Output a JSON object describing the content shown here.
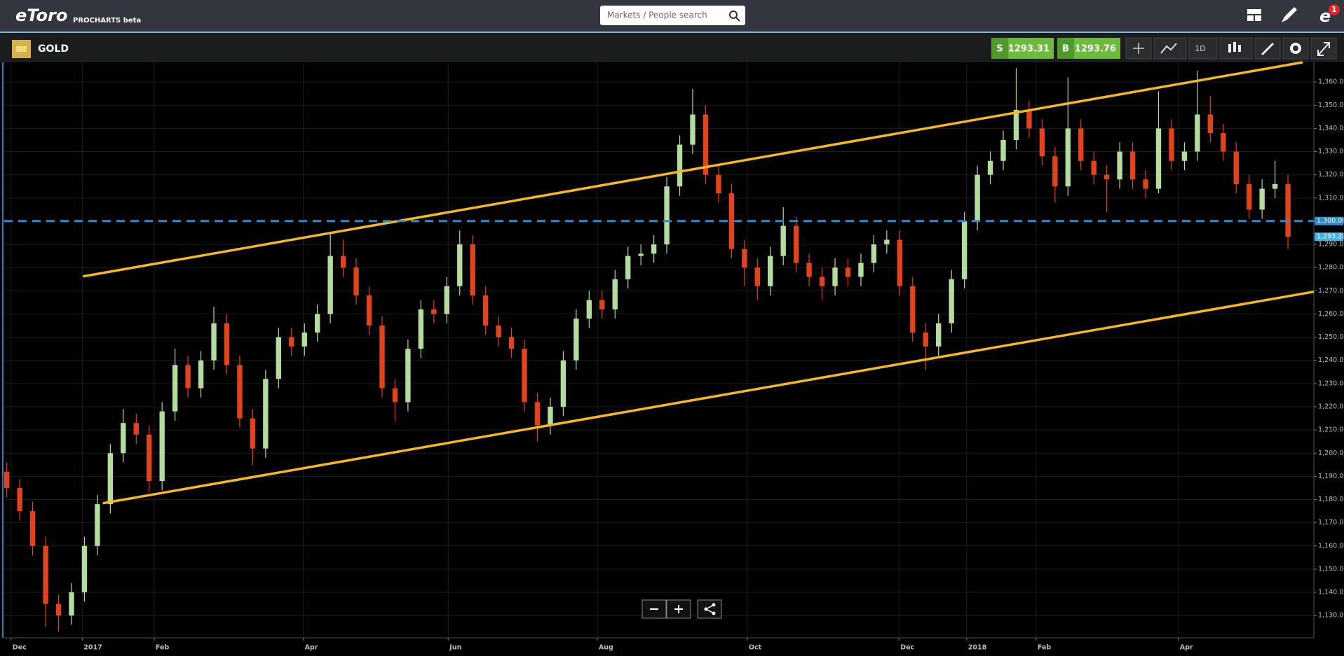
{
  "header": {
    "logo": "eToro",
    "product": "PROCHARTS beta",
    "search_placeholder": "Markets / People search",
    "notifications": "1"
  },
  "toolbar": {
    "instrument": "GOLD",
    "sell_label": "S",
    "sell_price": 1293.31,
    "buy_label": "B",
    "buy_price": 1293.76,
    "interval": "1D"
  },
  "chart_data": {
    "type": "candlestick",
    "up_color": "#b4dc9c",
    "down_color": "#e2431b",
    "grid": true,
    "x": [
      0,
      1,
      2,
      3,
      4,
      5,
      6,
      7,
      8,
      9,
      10,
      11,
      12,
      13,
      14,
      15,
      16,
      17,
      18,
      19,
      20,
      21,
      22,
      23,
      24,
      25,
      26,
      27,
      28,
      29,
      30,
      31,
      32,
      33,
      34,
      35,
      36,
      37,
      38,
      39,
      40,
      41,
      42,
      43,
      44,
      45,
      46,
      47,
      48,
      49,
      50,
      51,
      52,
      53,
      54,
      55,
      56,
      57,
      58,
      59,
      60,
      61,
      62,
      63,
      64,
      65,
      66,
      67,
      68,
      69,
      70,
      71,
      72,
      73,
      74,
      75,
      76,
      77,
      78,
      79,
      80,
      81,
      82,
      83,
      84,
      85,
      86,
      87,
      88,
      89,
      90,
      91,
      92,
      93,
      94,
      95,
      96,
      97,
      98,
      99
    ],
    "open": [
      1192,
      1185,
      1175,
      1160,
      1135,
      1130,
      1140,
      1160,
      1178,
      1200,
      1213,
      1208,
      1188,
      1218,
      1238,
      1228,
      1240,
      1256,
      1238,
      1215,
      1202,
      1232,
      1250,
      1246,
      1252,
      1260,
      1285,
      1280,
      1268,
      1255,
      1228,
      1222,
      1245,
      1262,
      1260,
      1272,
      1290,
      1268,
      1255,
      1250,
      1245,
      1222,
      1212,
      1220,
      1240,
      1258,
      1266,
      1262,
      1275,
      1285,
      1286,
      1290,
      1315,
      1333,
      1346,
      1320,
      1312,
      1288,
      1280,
      1272,
      1285,
      1298,
      1282,
      1276,
      1272,
      1280,
      1276,
      1282,
      1290,
      1292,
      1272,
      1252,
      1246,
      1256,
      1275,
      1300,
      1320,
      1326,
      1335,
      1348,
      1340,
      1328,
      1315,
      1340,
      1326,
      1320,
      1318,
      1330,
      1318,
      1314,
      1340,
      1326,
      1330,
      1346,
      1338,
      1330,
      1316,
      1305,
      1314,
      1316
    ],
    "high": [
      1196,
      1189,
      1179,
      1164,
      1139,
      1144,
      1164,
      1182,
      1204,
      1219,
      1217,
      1212,
      1222,
      1245,
      1242,
      1244,
      1263,
      1260,
      1242,
      1219,
      1236,
      1254,
      1254,
      1256,
      1264,
      1295,
      1292,
      1284,
      1272,
      1259,
      1232,
      1249,
      1266,
      1266,
      1276,
      1296,
      1294,
      1272,
      1259,
      1254,
      1249,
      1226,
      1224,
      1244,
      1262,
      1270,
      1270,
      1279,
      1289,
      1290,
      1294,
      1319,
      1337,
      1357,
      1350,
      1324,
      1316,
      1292,
      1284,
      1289,
      1306,
      1302,
      1286,
      1280,
      1284,
      1284,
      1286,
      1294,
      1296,
      1296,
      1276,
      1256,
      1260,
      1279,
      1304,
      1324,
      1330,
      1339,
      1366,
      1352,
      1344,
      1332,
      1362,
      1344,
      1330,
      1324,
      1334,
      1334,
      1322,
      1356,
      1344,
      1334,
      1365,
      1354,
      1342,
      1334,
      1320,
      1318,
      1326,
      1320
    ],
    "low": [
      1181,
      1171,
      1156,
      1125,
      1123,
      1126,
      1136,
      1156,
      1174,
      1196,
      1204,
      1183,
      1184,
      1214,
      1224,
      1224,
      1236,
      1234,
      1211,
      1195,
      1198,
      1228,
      1242,
      1242,
      1248,
      1256,
      1276,
      1264,
      1251,
      1224,
      1214,
      1218,
      1241,
      1256,
      1256,
      1268,
      1264,
      1251,
      1246,
      1241,
      1218,
      1205,
      1208,
      1216,
      1236,
      1254,
      1258,
      1258,
      1271,
      1281,
      1282,
      1286,
      1311,
      1329,
      1316,
      1308,
      1284,
      1272,
      1266,
      1268,
      1281,
      1278,
      1272,
      1266,
      1268,
      1272,
      1272,
      1278,
      1286,
      1268,
      1248,
      1236,
      1242,
      1252,
      1271,
      1296,
      1316,
      1322,
      1331,
      1336,
      1324,
      1308,
      1311,
      1322,
      1316,
      1304,
      1314,
      1314,
      1310,
      1312,
      1322,
      1322,
      1326,
      1334,
      1326,
      1312,
      1301,
      1301,
      1310,
      1288
    ],
    "close": [
      1185,
      1175,
      1160,
      1135,
      1130,
      1140,
      1160,
      1178,
      1200,
      1213,
      1208,
      1188,
      1218,
      1238,
      1228,
      1240,
      1256,
      1238,
      1215,
      1202,
      1232,
      1250,
      1246,
      1252,
      1260,
      1285,
      1280,
      1268,
      1255,
      1228,
      1222,
      1245,
      1262,
      1260,
      1272,
      1290,
      1268,
      1255,
      1250,
      1245,
      1222,
      1212,
      1220,
      1240,
      1258,
      1266,
      1262,
      1275,
      1285,
      1286,
      1290,
      1315,
      1333,
      1346,
      1320,
      1312,
      1288,
      1280,
      1272,
      1285,
      1298,
      1282,
      1276,
      1272,
      1280,
      1276,
      1282,
      1290,
      1292,
      1272,
      1252,
      1246,
      1256,
      1275,
      1300,
      1320,
      1326,
      1335,
      1348,
      1340,
      1328,
      1315,
      1340,
      1326,
      1320,
      1318,
      1330,
      1318,
      1314,
      1340,
      1326,
      1330,
      1346,
      1338,
      1330,
      1316,
      1305,
      1314,
      1316,
      1293.29
    ],
    "xlim": [
      -0.2,
      101
    ],
    "xticks": [
      {
        "value": 0.33,
        "label": "Dec"
      },
      {
        "value": 5.83,
        "label": "2017"
      },
      {
        "value": 11.39,
        "label": "Feb"
      },
      {
        "value": 22.91,
        "label": "Apr"
      },
      {
        "value": 34.11,
        "label": "Jun"
      },
      {
        "value": 45.63,
        "label": "Aug"
      },
      {
        "value": 57.22,
        "label": "Oct"
      },
      {
        "value": 68.94,
        "label": "Dec"
      },
      {
        "value": 74.17,
        "label": "2018"
      },
      {
        "value": 79.54,
        "label": "Feb"
      },
      {
        "value": 90.53,
        "label": "Apr"
      }
    ],
    "ylim": [
      1120.4,
      1368.5
    ],
    "yticks": [
      {
        "value": 1130,
        "label": "1,130.00"
      },
      {
        "value": 1140,
        "label": "1,140.00"
      },
      {
        "value": 1150,
        "label": "1,150.00"
      },
      {
        "value": 1160,
        "label": "1,160.00"
      },
      {
        "value": 1170,
        "label": "1,170.00"
      },
      {
        "value": 1180,
        "label": "1,180.00"
      },
      {
        "value": 1190,
        "label": "1,190.00"
      },
      {
        "value": 1200,
        "label": "1,200.00"
      },
      {
        "value": 1210,
        "label": "1,210.00"
      },
      {
        "value": 1220,
        "label": "1,220.00"
      },
      {
        "value": 1230,
        "label": "1,230.00"
      },
      {
        "value": 1240,
        "label": "1,240.00"
      },
      {
        "value": 1250,
        "label": "1,250.00"
      },
      {
        "value": 1260,
        "label": "1,260.00"
      },
      {
        "value": 1270,
        "label": "1,270.00"
      },
      {
        "value": 1280,
        "label": "1,280.00"
      },
      {
        "value": 1290,
        "label": "1,290.00"
      },
      {
        "value": 1300,
        "label": "1,300.00"
      },
      {
        "value": 1310,
        "label": "1,310.00"
      },
      {
        "value": 1320,
        "label": "1,320.00"
      },
      {
        "value": 1330,
        "label": "1,330.00"
      },
      {
        "value": 1340,
        "label": "1,340.00"
      },
      {
        "value": 1350,
        "label": "1,350.00"
      },
      {
        "value": 1360,
        "label": "1,360.00"
      }
    ],
    "trend_lines": [
      {
        "x": [
          5.89,
          100.13
        ],
        "y": [
          1276.2,
          1368.5
        ],
        "color": "#f6b91a"
      },
      {
        "x": [
          7.42,
          101
        ],
        "y": [
          1178.4,
          1269.6
        ],
        "color": "#f6b91a"
      }
    ],
    "price_lines": [
      {
        "value": 1300.08,
        "label": "1,300.08",
        "color": "#2e8bd0",
        "style": "dashed"
      },
      {
        "value": 1293.29,
        "label": "1,293.29",
        "color": "#3fb0e8",
        "style": "label-only"
      }
    ]
  }
}
